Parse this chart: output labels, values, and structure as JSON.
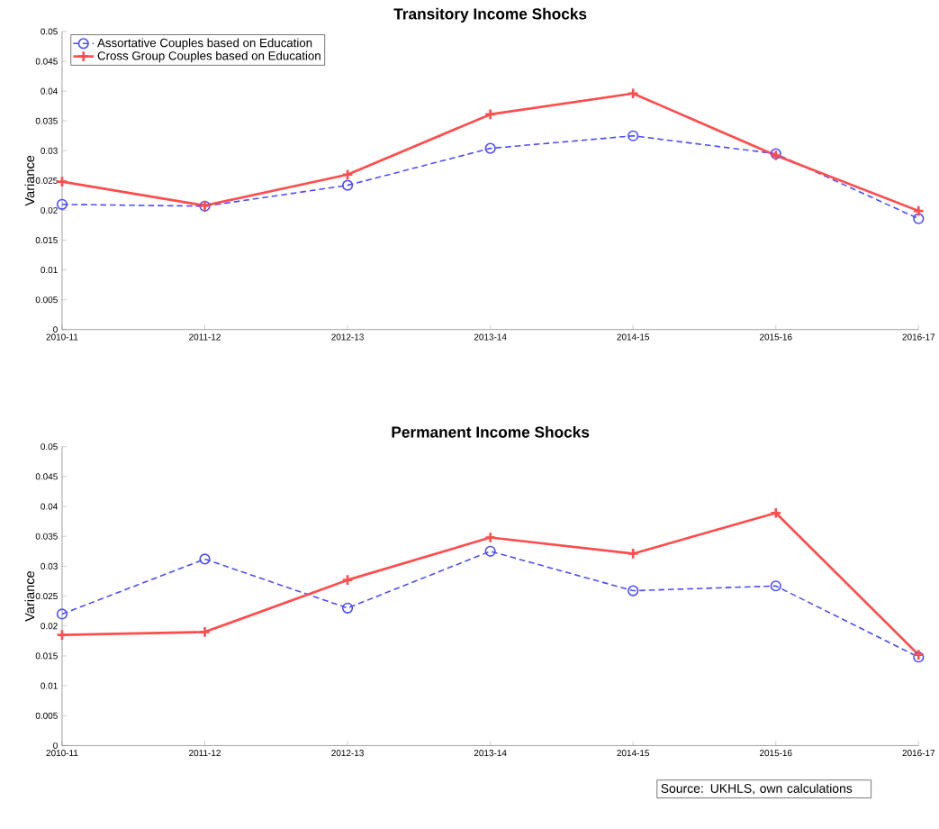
{
  "chart_data": [
    {
      "type": "line",
      "title": "Transitory Income Shocks",
      "ylabel": "Variance",
      "categories": [
        "2010-11",
        "2011-12",
        "2012-13",
        "2013-14",
        "2014-15",
        "2015-16",
        "2016-17"
      ],
      "ylim": [
        0,
        0.05
      ],
      "yticks": [
        0,
        0.005,
        0.01,
        0.015,
        0.02,
        0.025,
        0.03,
        0.035,
        0.04,
        0.045,
        0.05
      ],
      "grid": false,
      "legend": "top left",
      "series": [
        {
          "name": "Assortative Couples based on Education",
          "color": "#4d4dff",
          "marker": "circle",
          "line_style": "dashed",
          "values": [
            0.021,
            0.0207,
            0.0242,
            0.0304,
            0.0325,
            0.0295,
            0.0186
          ]
        },
        {
          "name": "Cross Group Couples based on Education",
          "color": "#ff4d4d",
          "marker": "cross",
          "line_style": "solid",
          "values": [
            0.0248,
            0.0208,
            0.026,
            0.0361,
            0.0396,
            0.0292,
            0.0199
          ]
        }
      ]
    },
    {
      "type": "line",
      "title": "Permanent Income Shocks",
      "ylabel": "Variance",
      "categories": [
        "2010-11",
        "2011-12",
        "2012-13",
        "2013-14",
        "2014-15",
        "2015-16",
        "2016-17"
      ],
      "ylim": [
        0,
        0.05
      ],
      "yticks": [
        0,
        0.005,
        0.01,
        0.015,
        0.02,
        0.025,
        0.03,
        0.035,
        0.04,
        0.045,
        0.05
      ],
      "grid": false,
      "legend": false,
      "annotations": [
        "Source: UKHLS, own calculations"
      ],
      "series": [
        {
          "color": "#4d4dff",
          "marker": "circle",
          "line_style": "dashed",
          "values": [
            0.022,
            0.0312,
            0.023,
            0.0325,
            0.0259,
            0.0267,
            0.0148
          ]
        },
        {
          "color": "#ff4d4d",
          "marker": "cross",
          "line_style": "solid",
          "values": [
            0.0185,
            0.019,
            0.0277,
            0.0348,
            0.0321,
            0.0389,
            0.0152
          ]
        }
      ]
    }
  ]
}
